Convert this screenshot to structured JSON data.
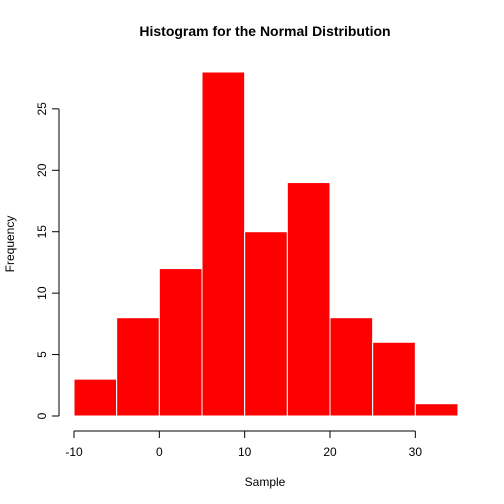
{
  "chart_data": {
    "type": "bar",
    "title": "Histogram for the Normal Distribution",
    "xlabel": "Sample",
    "ylabel": "Frequency",
    "bin_edges": [
      -10,
      -5,
      0,
      5,
      10,
      15,
      20,
      25,
      30,
      35
    ],
    "values": [
      3,
      8,
      12,
      28,
      15,
      19,
      8,
      6,
      1
    ],
    "xlim": [
      -10,
      35
    ],
    "ylim": [
      0,
      28
    ],
    "x_ticks": [
      -10,
      0,
      10,
      20,
      30
    ],
    "y_ticks": [
      0,
      5,
      10,
      15,
      20,
      25
    ],
    "bar_color": "#ff0000",
    "grid": false,
    "legend": "none"
  }
}
